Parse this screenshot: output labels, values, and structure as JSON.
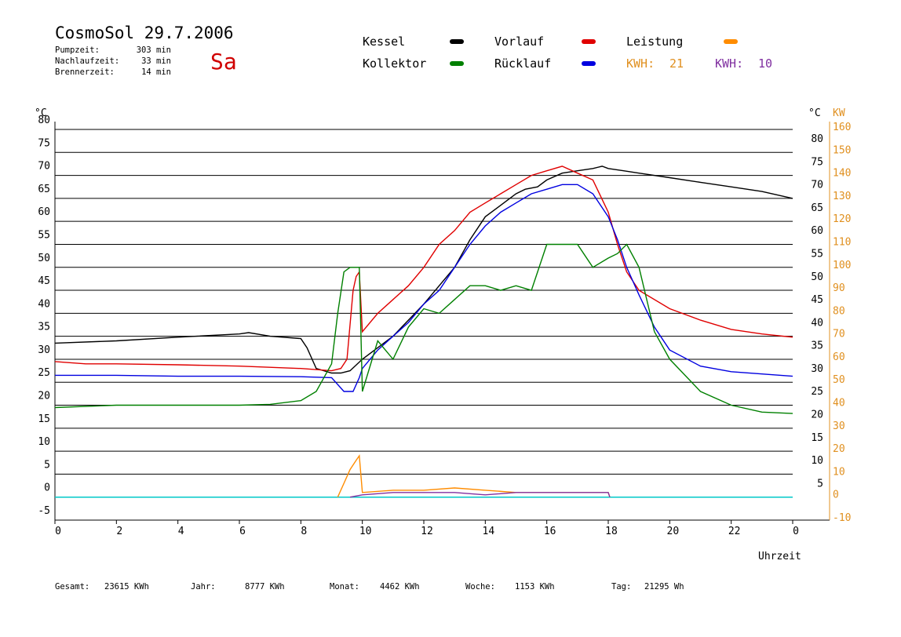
{
  "header": {
    "title": "CosmoSol 29.7.2006",
    "day": "Sa",
    "stats": [
      {
        "label": "Pumpzeit:",
        "value": "303 min"
      },
      {
        "label": "Nachlaufzeit:",
        "value": "33 min"
      },
      {
        "label": "Brennerzeit:",
        "value": "14 min"
      }
    ]
  },
  "legend": [
    {
      "name": "Kessel",
      "color": "#000000"
    },
    {
      "name": "Vorlauf",
      "color": "#e00000"
    },
    {
      "name": "Leistung",
      "color": "#ff8c00"
    },
    {
      "name": "Kollektor",
      "color": "#008000"
    },
    {
      "name": "Rücklauf",
      "color": "#0000e0"
    }
  ],
  "kwh": [
    {
      "label": "KWH:",
      "value": "21",
      "color": "#e09020"
    },
    {
      "label": "KWH:",
      "value": "10",
      "color": "#8030a0"
    }
  ],
  "footer": [
    {
      "label": "Gesamt:",
      "value": "23615 KWh"
    },
    {
      "label": "Jahr:",
      "value": "8777 KWh"
    },
    {
      "label": "Monat:",
      "value": "4462 KWh"
    },
    {
      "label": "Woche:",
      "value": "1153 KWh"
    },
    {
      "label": "Tag:",
      "value": "21295 Wh"
    }
  ],
  "chart_data": {
    "type": "line",
    "xlabel": "Uhrzeit",
    "ylabel_left": "°C",
    "ylabel_right_1": "°C",
    "ylabel_right_2": "KW",
    "xlim": [
      0,
      24
    ],
    "ylim_left": [
      -5,
      80
    ],
    "ylim_right_kw": [
      -10,
      160
    ],
    "x_ticks": [
      "0",
      "2",
      "4",
      "6",
      "8",
      "10",
      "12",
      "14",
      "16",
      "18",
      "20",
      "22",
      "0"
    ],
    "y_ticks_left": [
      "-5",
      "0",
      "5",
      "10",
      "15",
      "20",
      "25",
      "30",
      "35",
      "40",
      "45",
      "50",
      "55",
      "60",
      "65",
      "70",
      "75",
      "80"
    ],
    "y_ticks_right": [
      "5",
      "10",
      "15",
      "20",
      "25",
      "30",
      "35",
      "40",
      "45",
      "50",
      "55",
      "60",
      "65",
      "70",
      "75",
      "80"
    ],
    "y_ticks_kw": [
      "-10",
      "0",
      "10",
      "20",
      "30",
      "40",
      "50",
      "60",
      "70",
      "80",
      "90",
      "100",
      "110",
      "120",
      "130",
      "140",
      "150",
      "160"
    ],
    "grid": "horizontal",
    "series": [
      {
        "name": "Kessel",
        "color": "#000000",
        "x": [
          0,
          2,
          4,
          6,
          6.3,
          7,
          8,
          8.2,
          8.5,
          9,
          9.3,
          9.6,
          10,
          11,
          12,
          13,
          13.5,
          14,
          15,
          15.3,
          15.7,
          16,
          16.5,
          17,
          17.5,
          17.8,
          18,
          18.5,
          19,
          20,
          21,
          22,
          23,
          24
        ],
        "y": [
          33.5,
          34,
          34.8,
          35.5,
          35.8,
          35,
          34.5,
          32.5,
          28,
          27,
          27,
          27.5,
          30,
          35,
          42,
          50,
          56,
          61,
          66,
          67,
          67.5,
          69,
          70.5,
          71,
          71.5,
          72,
          71.5,
          71,
          70.5,
          69.5,
          68.5,
          67.5,
          66.5,
          65
        ]
      },
      {
        "name": "Vorlauf",
        "color": "#e00000",
        "x": [
          0,
          1,
          2,
          4,
          6,
          8,
          9,
          9.3,
          9.5,
          9.7,
          9.8,
          9.9,
          10,
          10.5,
          11,
          11.5,
          12,
          12.5,
          13,
          13.5,
          14,
          14.5,
          15,
          15.5,
          16,
          16.5,
          17,
          17.5,
          18,
          18.3,
          18.6,
          19,
          20,
          21,
          22,
          23,
          24
        ],
        "y": [
          29.5,
          29,
          29,
          28.8,
          28.5,
          28,
          27.5,
          28,
          30,
          45,
          48,
          49,
          36,
          40,
          43,
          46,
          50,
          55,
          58,
          62,
          64,
          66,
          68,
          70,
          71,
          72,
          70.5,
          69,
          62,
          55,
          49,
          45,
          41,
          38.5,
          36.5,
          35.5,
          34.8
        ]
      },
      {
        "name": "Rücklauf",
        "color": "#0000e0",
        "x": [
          0,
          2,
          4,
          6,
          8,
          9,
          9.4,
          9.7,
          9.9,
          10,
          10.5,
          11,
          11.5,
          12,
          12.5,
          13,
          13.5,
          14,
          14.5,
          15,
          15.5,
          16,
          16.5,
          17,
          17.5,
          18,
          18.3,
          18.6,
          19,
          19.5,
          20,
          21,
          22,
          23,
          24
        ],
        "y": [
          26.5,
          26.5,
          26.3,
          26.3,
          26.2,
          26,
          23,
          23,
          26,
          28,
          32,
          35,
          38,
          42,
          45,
          50,
          55,
          59,
          62,
          64,
          66,
          67,
          68,
          68,
          66,
          61,
          56,
          50,
          44,
          37,
          32,
          28.5,
          27.3,
          26.8,
          26.3
        ]
      },
      {
        "name": "Kollektor",
        "color": "#008000",
        "x": [
          0,
          2,
          4,
          6,
          7,
          8,
          8.5,
          9,
          9.2,
          9.4,
          9.6,
          9.9,
          10,
          10.5,
          11,
          11.5,
          12,
          12.5,
          13,
          13.5,
          14,
          14.5,
          15,
          15.5,
          16,
          16.5,
          17,
          17.5,
          18,
          18.3,
          18.6,
          19,
          19.5,
          20,
          21,
          22,
          23,
          24
        ],
        "y": [
          19.5,
          20,
          20,
          20,
          20.2,
          21,
          23,
          29,
          40,
          49,
          50,
          50,
          23,
          34,
          30,
          37,
          41,
          40,
          43,
          46,
          46,
          45,
          46,
          45,
          55,
          55,
          55,
          50,
          52,
          53,
          55,
          50,
          36,
          30,
          23,
          20,
          18.5,
          18.2
        ]
      },
      {
        "name": "Leistung",
        "color": "#ff8c00",
        "axis": "kw",
        "x": [
          9.2,
          9.4,
          9.6,
          9.8,
          9.9,
          10,
          11,
          12,
          13,
          14,
          15,
          16,
          17,
          18,
          18.05
        ],
        "y": [
          0,
          6,
          12,
          16,
          18,
          2,
          3,
          3,
          4,
          3,
          2,
          2,
          2,
          2,
          0
        ]
      },
      {
        "name": "KWH",
        "color": "#8030a0",
        "axis": "kw",
        "x": [
          9.6,
          10,
          11,
          12,
          13,
          14,
          15,
          16,
          17,
          18,
          18.05
        ],
        "y": [
          0,
          1,
          2,
          2,
          2,
          1,
          2,
          2,
          2,
          2,
          0
        ]
      }
    ]
  }
}
